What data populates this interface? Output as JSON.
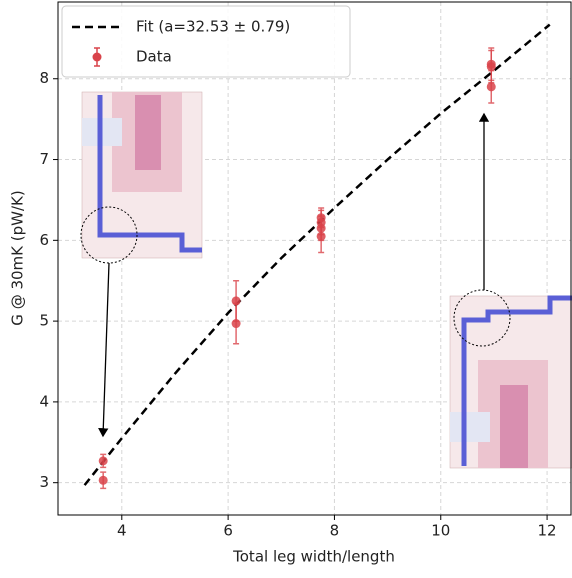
{
  "chart_data": {
    "type": "scatter",
    "x_label": "Total leg width/length",
    "y_label": "G @ 30mK (pW/K)",
    "xlim": [
      2.8,
      12.45
    ],
    "ylim": [
      2.6,
      8.95
    ],
    "xticks": [
      4,
      6,
      8,
      10,
      12
    ],
    "yticks": [
      3,
      4,
      5,
      6,
      7,
      8
    ],
    "grid": true,
    "legend": "upper left",
    "series": [
      {
        "name": "Fit (a=32.53 ± 0.79)",
        "type": "line",
        "color": "#000000",
        "x": [
          3.3,
          4,
          5,
          6,
          7,
          8,
          9,
          10,
          11,
          12.05
        ],
        "values": [
          2.97,
          3.55,
          4.35,
          5.1,
          5.78,
          6.4,
          7.0,
          7.57,
          8.1,
          8.67
        ]
      },
      {
        "name": "Data",
        "type": "errorbar",
        "color": "#d9434a",
        "x": [
          3.65,
          3.65,
          6.15,
          6.15,
          7.75,
          7.75,
          7.75,
          7.75,
          10.95,
          10.95,
          10.95
        ],
        "values": [
          3.27,
          3.03,
          5.25,
          4.97,
          6.28,
          6.22,
          6.15,
          6.05,
          8.18,
          8.15,
          7.9
        ],
        "errors": [
          0.08,
          0.1,
          0.25,
          0.25,
          0.12,
          0.15,
          0.15,
          0.2,
          0.2,
          0.2,
          0.2
        ]
      }
    ]
  }
}
